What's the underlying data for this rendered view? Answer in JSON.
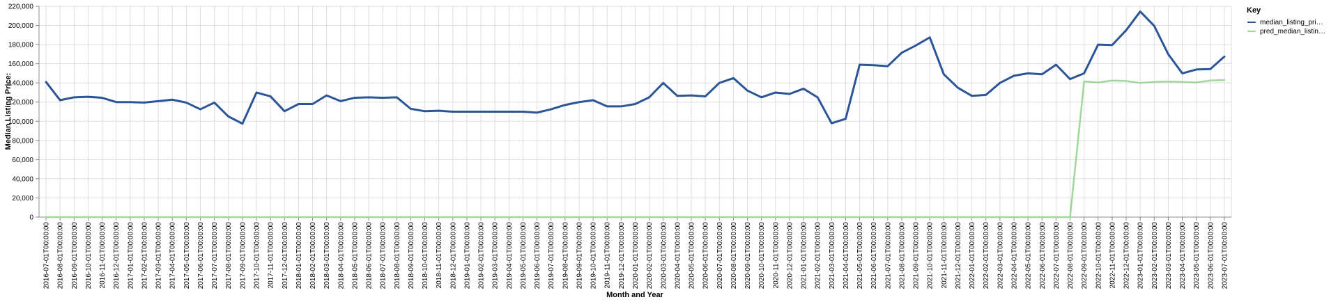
{
  "chart_data": {
    "type": "line",
    "title": "",
    "xlabel": "Month and Year",
    "ylabel": "Median Listing Price:",
    "ylim": [
      0,
      220000
    ],
    "yticks": [
      "0",
      "20,000",
      "40,000",
      "60,000",
      "80,000",
      "100,000",
      "120,000",
      "140,000",
      "160,000",
      "180,000",
      "200,000",
      "220,000"
    ],
    "grid": true,
    "legend": {
      "title": "Key",
      "placement": "top-right",
      "entries": [
        {
          "label": "median_listing_pri…",
          "color": "#2c5597"
        },
        {
          "label": "pred_median_listin…",
          "color": "#9fd89a"
        }
      ]
    },
    "x": [
      "2016-07-01T00:00:00",
      "2016-08-01T00:00:00",
      "2016-09-01T00:00:00",
      "2016-10-01T00:00:00",
      "2016-11-01T00:00:00",
      "2016-12-01T00:00:00",
      "2017-01-01T00:00:00",
      "2017-02-01T00:00:00",
      "2017-03-01T00:00:00",
      "2017-04-01T00:00:00",
      "2017-05-01T00:00:00",
      "2017-06-01T00:00:00",
      "2017-07-01T00:00:00",
      "2017-08-01T00:00:00",
      "2017-09-01T00:00:00",
      "2017-10-01T00:00:00",
      "2017-11-01T00:00:00",
      "2017-12-01T00:00:00",
      "2018-01-01T00:00:00",
      "2018-02-01T00:00:00",
      "2018-03-01T00:00:00",
      "2018-04-01T00:00:00",
      "2018-05-01T00:00:00",
      "2018-06-01T00:00:00",
      "2018-07-01T00:00:00",
      "2018-08-01T00:00:00",
      "2018-09-01T00:00:00",
      "2018-10-01T00:00:00",
      "2018-11-01T00:00:00",
      "2018-12-01T00:00:00",
      "2019-01-01T00:00:00",
      "2019-02-01T00:00:00",
      "2019-03-01T00:00:00",
      "2019-04-01T00:00:00",
      "2019-05-01T00:00:00",
      "2019-06-01T00:00:00",
      "2019-07-01T00:00:00",
      "2019-08-01T00:00:00",
      "2019-09-01T00:00:00",
      "2019-10-01T00:00:00",
      "2019-11-01T00:00:00",
      "2019-12-01T00:00:00",
      "2020-01-01T00:00:00",
      "2020-02-01T00:00:00",
      "2020-03-01T00:00:00",
      "2020-04-01T00:00:00",
      "2020-05-01T00:00:00",
      "2020-06-01T00:00:00",
      "2020-07-01T00:00:00",
      "2020-08-01T00:00:00",
      "2020-09-01T00:00:00",
      "2020-10-01T00:00:00",
      "2020-11-01T00:00:00",
      "2020-12-01T00:00:00",
      "2021-01-01T00:00:00",
      "2021-02-01T00:00:00",
      "2021-03-01T00:00:00",
      "2021-04-01T00:00:00",
      "2021-05-01T00:00:00",
      "2021-06-01T00:00:00",
      "2021-07-01T00:00:00",
      "2021-08-01T00:00:00",
      "2021-09-01T00:00:00",
      "2021-10-01T00:00:00",
      "2021-11-01T00:00:00",
      "2021-12-01T00:00:00",
      "2022-01-01T00:00:00",
      "2022-02-01T00:00:00",
      "2022-03-01T00:00:00",
      "2022-04-01T00:00:00",
      "2022-05-01T00:00:00",
      "2022-06-01T00:00:00",
      "2022-07-01T00:00:00",
      "2022-08-01T00:00:00",
      "2022-09-01T00:00:00",
      "2022-10-01T00:00:00",
      "2022-11-01T00:00:00",
      "2022-12-01T00:00:00",
      "2023-01-01T00:00:00",
      "2023-02-01T00:00:00",
      "2023-03-01T00:00:00",
      "2023-04-01T00:00:00",
      "2023-05-01T00:00:00",
      "2023-06-01T00:00:00",
      "2023-07-01T00:00:00"
    ],
    "series": [
      {
        "name": "median_listing_pri…",
        "color": "#2c5597",
        "values": [
          141000,
          122000,
          125000,
          125500,
          124500,
          120000,
          120000,
          119500,
          121000,
          122500,
          119500,
          112500,
          119500,
          105000,
          97500,
          130000,
          126000,
          110500,
          118000,
          118000,
          127000,
          121000,
          124500,
          125000,
          124500,
          125000,
          113000,
          110500,
          111000,
          110000,
          110000,
          110000,
          110000,
          110000,
          110000,
          109000,
          112500,
          117000,
          120000,
          122000,
          115500,
          115500,
          118000,
          125000,
          140000,
          126500,
          127000,
          126000,
          140000,
          145000,
          132000,
          125000,
          130000,
          128500,
          134000,
          125000,
          98000,
          102500,
          159000,
          158500,
          157500,
          171500,
          179000,
          187500,
          149000,
          135000,
          126500,
          127500,
          140000,
          147500,
          150000,
          149000,
          159000,
          144000,
          150000,
          180000,
          179500,
          195000,
          214500,
          199500,
          170000,
          150000,
          154000,
          154500,
          167500
        ]
      },
      {
        "name": "pred_median_listin…",
        "color": "#9fd89a",
        "values": [
          0,
          0,
          0,
          0,
          0,
          0,
          0,
          0,
          0,
          0,
          0,
          0,
          0,
          0,
          0,
          0,
          0,
          0,
          0,
          0,
          0,
          0,
          0,
          0,
          0,
          0,
          0,
          0,
          0,
          0,
          0,
          0,
          0,
          0,
          0,
          0,
          0,
          0,
          0,
          0,
          0,
          0,
          0,
          0,
          0,
          0,
          0,
          0,
          0,
          0,
          0,
          0,
          0,
          0,
          0,
          0,
          0,
          0,
          0,
          0,
          0,
          0,
          0,
          0,
          0,
          0,
          0,
          0,
          0,
          0,
          0,
          0,
          0,
          0,
          141500,
          140500,
          142500,
          142000,
          140000,
          141000,
          141500,
          141000,
          140500,
          142500,
          143000
        ]
      }
    ]
  }
}
